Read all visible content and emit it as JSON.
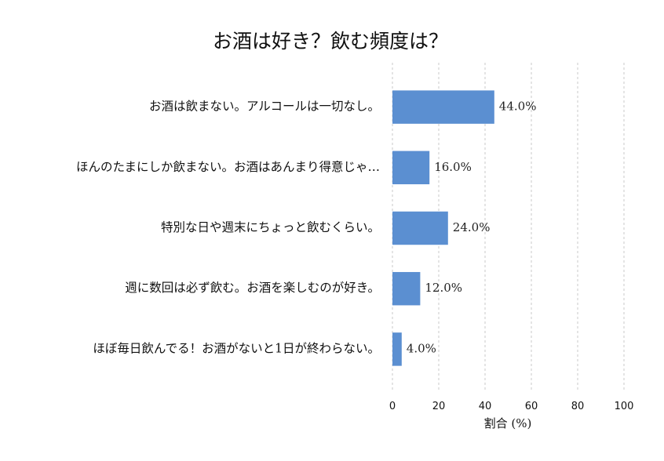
{
  "chart_data": {
    "type": "bar",
    "orientation": "horizontal",
    "title": "お酒は好き？飲む頻度は？",
    "xlabel": "割合 (%)",
    "ylabel": "",
    "xlim": [
      0,
      100
    ],
    "xticks": [
      "0",
      "20",
      "40",
      "60",
      "80",
      "100"
    ],
    "grid": "x dashed",
    "bar_color": "#5b8fd1",
    "categories": [
      "お酒は飲まない。アルコールは一切なし。",
      "ほんのたまにしか飲まない。お酒はあんまり得意じゃ…",
      "特別な日や週末にちょっと飲むくらい。",
      "週に数回は必ず飲む。お酒を楽しむのが好き。",
      "ほぼ毎日飲んでる！お酒がないと1日が終わらない。"
    ],
    "values": [
      44.0,
      16.0,
      24.0,
      12.0,
      4.0
    ],
    "value_labels": [
      "44.0%",
      "16.0%",
      "24.0%",
      "12.0%",
      "4.0%"
    ]
  }
}
